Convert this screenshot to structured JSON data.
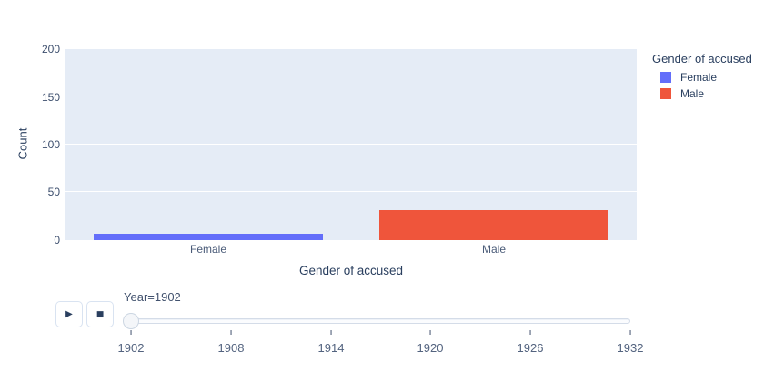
{
  "chart": {
    "y_axis_title": "Count",
    "x_axis_title": "Gender of accused",
    "y_ticks": [
      "200",
      "150",
      "100",
      "50",
      "0"
    ],
    "plot_bgcolor": "#E5ECF6",
    "grid_color": "#ffffff"
  },
  "chart_data": {
    "type": "bar",
    "title": "",
    "categories": [
      "Female",
      "Male"
    ],
    "values": [
      7,
      31
    ],
    "colors": [
      "#636EFA",
      "#EF553B"
    ],
    "xlabel": "Gender of accused",
    "ylabel": "Count",
    "ylim": [
      0,
      200
    ],
    "yticks": [
      0,
      50,
      100,
      150,
      200
    ],
    "grid": true,
    "legend_title": "Gender of accused",
    "legend_position": "right",
    "frame": "Year=1902"
  },
  "legend": {
    "title": "Gender of accused",
    "items": [
      {
        "label": "Female",
        "color": "#636EFA"
      },
      {
        "label": "Male",
        "color": "#EF553B"
      }
    ]
  },
  "icons": {
    "play": "▶",
    "stop": "■"
  },
  "slider": {
    "current_value_label": "Year=1902",
    "ticks": [
      "1902",
      "1908",
      "1914",
      "1920",
      "1926",
      "1932"
    ]
  }
}
